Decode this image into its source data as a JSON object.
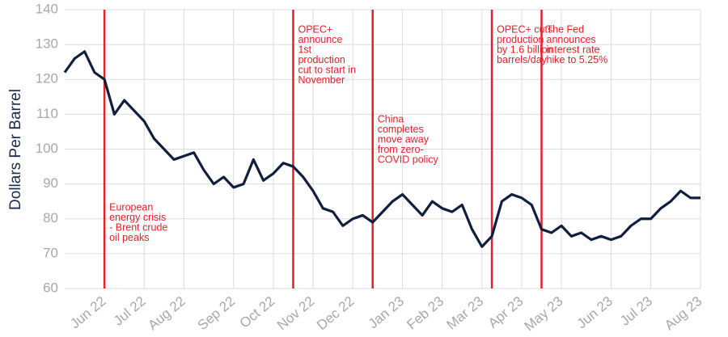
{
  "chart_data": {
    "type": "line",
    "y_label": "Dollars Per Barrel",
    "color": "#0f1f3d",
    "event_color": "#e3202b",
    "grid": true,
    "ylim": [
      60,
      140
    ],
    "yticks": [
      60,
      70,
      80,
      90,
      100,
      110,
      120,
      130,
      140
    ],
    "categories": [
      null,
      null,
      null,
      null,
      "Jun 22",
      null,
      null,
      null,
      "Jul 22",
      null,
      null,
      null,
      "Aug 22",
      null,
      null,
      null,
      null,
      "Sep 22",
      null,
      null,
      null,
      "Oct 22",
      null,
      null,
      null,
      "Nov 22",
      null,
      null,
      null,
      "Dec 22",
      null,
      null,
      null,
      null,
      "Jan 23",
      null,
      null,
      null,
      "Feb 23",
      null,
      null,
      null,
      "Mar 23",
      null,
      null,
      null,
      "Apr 23",
      null,
      null,
      null,
      "May 23",
      null,
      null,
      null,
      null,
      "Jun 23",
      null,
      null,
      null,
      "Jul 23",
      null,
      null,
      null,
      null,
      "Aug 23"
    ],
    "values": [
      122,
      126,
      128,
      122,
      120,
      110,
      114,
      111,
      108,
      103,
      100,
      97,
      98,
      99,
      94,
      90,
      92,
      89,
      90,
      97,
      91,
      93,
      96,
      95,
      92,
      88,
      83,
      82,
      78,
      80,
      81,
      79,
      82,
      85,
      87,
      84,
      81,
      85,
      83,
      82,
      84,
      77,
      72,
      75,
      85,
      87,
      86,
      84,
      77,
      76,
      78,
      75,
      76,
      74,
      75,
      74,
      75,
      78,
      80,
      80,
      83,
      85,
      88,
      86,
      86
    ],
    "annotations": [
      {
        "x": 4,
        "position": "bottom",
        "lines": [
          "European",
          "energy crisis",
          "- Brent crude",
          "oil peaks"
        ]
      },
      {
        "x": 23,
        "position": "top",
        "lines": [
          "OPEC+",
          "announce",
          "1st",
          "production",
          "cut to start in",
          "November"
        ]
      },
      {
        "x": 31,
        "position": "middle",
        "lines": [
          "China",
          "completes",
          "move away",
          "from zero-",
          "COVID policy"
        ]
      },
      {
        "x": 43,
        "position": "top",
        "lines": [
          "OPEC+ cuts",
          "production",
          "by 1.6 billion",
          "barrels/day"
        ]
      },
      {
        "x": 48,
        "position": "top",
        "lines": [
          "The Fed",
          "announces",
          "interest rate",
          "hike to 5.25%"
        ]
      }
    ]
  }
}
